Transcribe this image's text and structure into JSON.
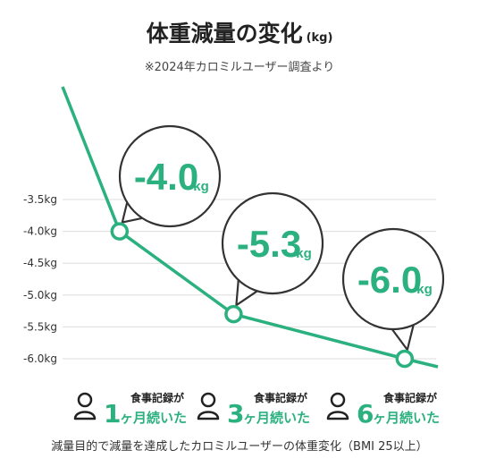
{
  "header": {
    "title": "体重減量の変化",
    "title_unit": "(kg)",
    "source_note": "※2024年カロミルユーザー調査より"
  },
  "chart_data": {
    "type": "line",
    "title": "体重減量の変化",
    "ylabel": "",
    "yticks": [
      "-3.5kg",
      "-4.0kg",
      "-4.5kg",
      "-5.0kg",
      "-5.5kg",
      "-6.0kg"
    ],
    "ytick_values": [
      -3.5,
      -4.0,
      -4.5,
      -5.0,
      -5.5,
      -6.0
    ],
    "ylim": [
      -6.0,
      -3.5
    ],
    "x": [
      0,
      1,
      3,
      6
    ],
    "values": [
      null,
      -4.0,
      -5.3,
      -6.0
    ],
    "color": "#2bb07f",
    "callouts": [
      {
        "value": "-4.0",
        "unit": "kg"
      },
      {
        "value": "-5.3",
        "unit": "kg"
      },
      {
        "value": "-6.0",
        "unit": "kg"
      }
    ]
  },
  "legend": [
    {
      "small": "食事記録が",
      "big": "1",
      "rest": "ヶ月続いた",
      "icon": "person-icon"
    },
    {
      "small": "食事記録が",
      "big": "3",
      "rest": "ヶ月続いた",
      "icon": "person-icon"
    },
    {
      "small": "食事記録が",
      "big": "6",
      "rest": "ヶ月続いた",
      "icon": "person-icon"
    }
  ],
  "footnote": "減量目的で減量を達成したカロミルユーザーの体重変化（BMI 25以上）"
}
